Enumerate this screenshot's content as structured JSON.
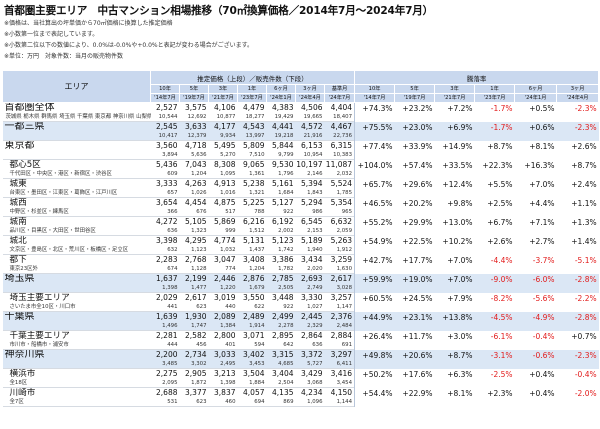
{
  "title": "首都圏主要エリア　中古マンション相場推移（70㎡換算価格／2014年7月〜2024年7月）",
  "notes": [
    "※価格は、当社算出の坪単価から70㎡価格に換算した推定価格",
    "※小数第一位まで表記しています。",
    "※小数第二位以下の数値により、0.0%は-0.0%や+0.0%と表記が変わる場合がございます。",
    "※単位：万円　対象件数：当月の販売物件数"
  ],
  "header": {
    "area": "エリア",
    "price_group": "推定価格（上段）／販売件数（下段）",
    "change_group": "騰落率",
    "price_cols": [
      "10年",
      "5年",
      "3年",
      "1年",
      "6ヶ月",
      "3ヶ月",
      "基準月"
    ],
    "price_sub": [
      "'14年7月",
      "'19年7月",
      "'21年7月",
      "'23年7月",
      "'24年1月",
      "'24年4月",
      "'24年7月"
    ],
    "change_cols": [
      "10年",
      "5年",
      "3年",
      "1年",
      "6ヶ月",
      "3ヶ月"
    ],
    "change_sub": [
      "'14年7月",
      "'19年7月",
      "'21年7月",
      "'23年7月",
      "'24年1月",
      "'24年4月"
    ]
  },
  "rows": [
    {
      "name": "首都圏全体",
      "sub": "茨城県 栃木県 群馬県 埼玉県 千葉県 東京都 神奈川県 山梨県",
      "size": "big",
      "hi": false,
      "ind": false,
      "prices": [
        "2,527",
        "3,575",
        "4,106",
        "4,479",
        "4,383",
        "4,506",
        "4,404"
      ],
      "counts": [
        "10,544",
        "12,692",
        "10,877",
        "18,277",
        "19,429",
        "19,665",
        "18,407"
      ],
      "changes": [
        "+74.3%",
        "+23.2%",
        "+7.2%",
        "-1.7%",
        "+0.5%",
        "-2.3%"
      ]
    },
    {
      "name": "一都三県",
      "sub": "",
      "size": "big",
      "hi": true,
      "ind": false,
      "prices": [
        "2,545",
        "3,633",
        "4,177",
        "4,543",
        "4,441",
        "4,572",
        "4,467"
      ],
      "counts": [
        "10,417",
        "12,379",
        "9,934",
        "13,997",
        "19,218",
        "21,916",
        "22,736"
      ],
      "changes": [
        "+75.5%",
        "+23.0%",
        "+6.9%",
        "-1.7%",
        "+0.6%",
        "-2.3%"
      ]
    },
    {
      "name": "東京都",
      "sub": "",
      "size": "big",
      "hi": false,
      "ind": false,
      "prices": [
        "3,560",
        "4,718",
        "5,495",
        "5,809",
        "5,844",
        "6,153",
        "6,315"
      ],
      "counts": [
        "3,894",
        "5,636",
        "5,270",
        "7,510",
        "9,799",
        "10,954",
        "10,383"
      ],
      "changes": [
        "+77.4%",
        "+33.9%",
        "+14.9%",
        "+8.7%",
        "+8.1%",
        "+2.6%"
      ]
    },
    {
      "name": "都心5区",
      "sub": "千代田区・中央区・港区・新宿区・渋谷区",
      "size": "med",
      "hi": false,
      "ind": true,
      "prices": [
        "5,436",
        "7,043",
        "8,308",
        "9,065",
        "9,530",
        "10,197",
        "11,087"
      ],
      "counts": [
        "609",
        "1,204",
        "1,095",
        "1,361",
        "1,796",
        "2,146",
        "2,032"
      ],
      "changes": [
        "+104.0%",
        "+57.4%",
        "+33.5%",
        "+22.3%",
        "+16.3%",
        "+8.7%"
      ]
    },
    {
      "name": "城東",
      "sub": "台東区・墨田区・江東区・葛飾区・江戸川区",
      "size": "med",
      "hi": false,
      "ind": true,
      "prices": [
        "3,333",
        "4,263",
        "4,913",
        "5,238",
        "5,161",
        "5,394",
        "5,524"
      ],
      "counts": [
        "657",
        "1,026",
        "1,016",
        "1,321",
        "1,684",
        "1,843",
        "1,785"
      ],
      "changes": [
        "+65.7%",
        "+29.6%",
        "+12.4%",
        "+5.5%",
        "+7.0%",
        "+2.4%"
      ]
    },
    {
      "name": "城西",
      "sub": "中野区・杉並区・練馬区",
      "size": "med",
      "hi": false,
      "ind": true,
      "prices": [
        "3,654",
        "4,454",
        "4,875",
        "5,225",
        "5,127",
        "5,294",
        "5,354"
      ],
      "counts": [
        "366",
        "676",
        "517",
        "788",
        "922",
        "986",
        "965"
      ],
      "changes": [
        "+46.5%",
        "+20.2%",
        "+9.8%",
        "+2.5%",
        "+4.4%",
        "+1.1%"
      ]
    },
    {
      "name": "城南",
      "sub": "品川区・目黒区・大田区・世田谷区",
      "size": "med",
      "hi": false,
      "ind": true,
      "prices": [
        "4,272",
        "5,105",
        "5,869",
        "6,216",
        "6,192",
        "6,545",
        "6,632"
      ],
      "counts": [
        "636",
        "1,323",
        "999",
        "1,512",
        "2,002",
        "2,153",
        "2,059"
      ],
      "changes": [
        "+55.2%",
        "+29.9%",
        "+13.0%",
        "+6.7%",
        "+7.1%",
        "+1.3%"
      ]
    },
    {
      "name": "城北",
      "sub": "文京区・豊島区・北区・荒川区・板橋区・足立区",
      "size": "med",
      "hi": false,
      "ind": true,
      "prices": [
        "3,398",
        "4,295",
        "4,774",
        "5,131",
        "5,123",
        "5,189",
        "5,263"
      ],
      "counts": [
        "632",
        "1,123",
        "1,032",
        "1,437",
        "1,742",
        "1,940",
        "1,912"
      ],
      "changes": [
        "+54.9%",
        "+22.5%",
        "+10.2%",
        "+2.6%",
        "+2.7%",
        "+1.4%"
      ]
    },
    {
      "name": "都下",
      "sub": "東京23区外",
      "size": "med",
      "hi": false,
      "ind": true,
      "prices": [
        "2,283",
        "2,768",
        "3,047",
        "3,408",
        "3,386",
        "3,434",
        "3,259"
      ],
      "counts": [
        "674",
        "1,128",
        "774",
        "1,204",
        "1,782",
        "2,020",
        "1,630"
      ],
      "changes": [
        "+42.7%",
        "+17.7%",
        "+7.0%",
        "-4.4%",
        "-3.7%",
        "-5.1%"
      ]
    },
    {
      "name": "埼玉県",
      "sub": "",
      "size": "big",
      "hi": true,
      "ind": false,
      "prices": [
        "1,637",
        "2,199",
        "2,446",
        "2,876",
        "2,785",
        "2,693",
        "2,617"
      ],
      "counts": [
        "1,398",
        "1,477",
        "1,220",
        "1,679",
        "2,505",
        "2,749",
        "3,028"
      ],
      "changes": [
        "+59.9%",
        "+19.0%",
        "+7.0%",
        "-9.0%",
        "-6.0%",
        "-2.8%"
      ]
    },
    {
      "name": "埼玉主要エリア",
      "sub": "さいたま市全10区・川口市",
      "size": "med",
      "hi": false,
      "ind": true,
      "prices": [
        "2,029",
        "2,617",
        "3,019",
        "3,550",
        "3,448",
        "3,330",
        "3,257"
      ],
      "counts": [
        "441",
        "623",
        "440",
        "622",
        "922",
        "1,027",
        "1,147"
      ],
      "changes": [
        "+60.5%",
        "+24.5%",
        "+7.9%",
        "-8.2%",
        "-5.6%",
        "-2.2%"
      ]
    },
    {
      "name": "千葉県",
      "sub": "",
      "size": "big",
      "hi": true,
      "ind": false,
      "prices": [
        "1,639",
        "1,930",
        "2,089",
        "2,489",
        "2,499",
        "2,445",
        "2,376"
      ],
      "counts": [
        "1,496",
        "1,747",
        "1,384",
        "1,914",
        "2,278",
        "2,329",
        "2,484"
      ],
      "changes": [
        "+44.9%",
        "+23.1%",
        "+13.8%",
        "-4.5%",
        "-4.9%",
        "-2.8%"
      ]
    },
    {
      "name": "千葉主要エリア",
      "sub": "市川市・船橋市・浦安市",
      "size": "med",
      "hi": false,
      "ind": true,
      "prices": [
        "2,281",
        "2,582",
        "2,800",
        "3,071",
        "2,895",
        "2,864",
        "2,884"
      ],
      "counts": [
        "444",
        "456",
        "401",
        "594",
        "642",
        "636",
        "691"
      ],
      "changes": [
        "+26.4%",
        "+11.7%",
        "+3.0%",
        "-6.1%",
        "-0.4%",
        "+0.7%"
      ]
    },
    {
      "name": "神奈川県",
      "sub": "",
      "size": "big",
      "hi": true,
      "ind": false,
      "prices": [
        "2,200",
        "2,734",
        "3,033",
        "3,402",
        "3,315",
        "3,372",
        "3,297"
      ],
      "counts": [
        "3,485",
        "3,302",
        "2,495",
        "3,453",
        "4,685",
        "5,727",
        "6,411"
      ],
      "changes": [
        "+49.8%",
        "+20.6%",
        "+8.7%",
        "-3.1%",
        "-0.6%",
        "-2.3%"
      ]
    },
    {
      "name": "横浜市",
      "sub": "全18区",
      "size": "med",
      "hi": false,
      "ind": true,
      "prices": [
        "2,275",
        "2,905",
        "3,213",
        "3,504",
        "3,404",
        "3,429",
        "3,416"
      ],
      "counts": [
        "2,095",
        "1,872",
        "1,398",
        "1,884",
        "2,504",
        "3,068",
        "3,454"
      ],
      "changes": [
        "+50.2%",
        "+17.6%",
        "+6.3%",
        "-2.5%",
        "+0.4%",
        "-0.4%"
      ]
    },
    {
      "name": "川崎市",
      "sub": "全7区",
      "size": "med",
      "hi": false,
      "ind": true,
      "prices": [
        "2,688",
        "3,377",
        "3,837",
        "4,057",
        "4,135",
        "4,234",
        "4,150"
      ],
      "counts": [
        "531",
        "623",
        "460",
        "694",
        "869",
        "1,096",
        "1,144"
      ],
      "changes": [
        "+54.4%",
        "+22.9%",
        "+8.1%",
        "+2.3%",
        "+0.4%",
        "-2.0%"
      ]
    }
  ]
}
